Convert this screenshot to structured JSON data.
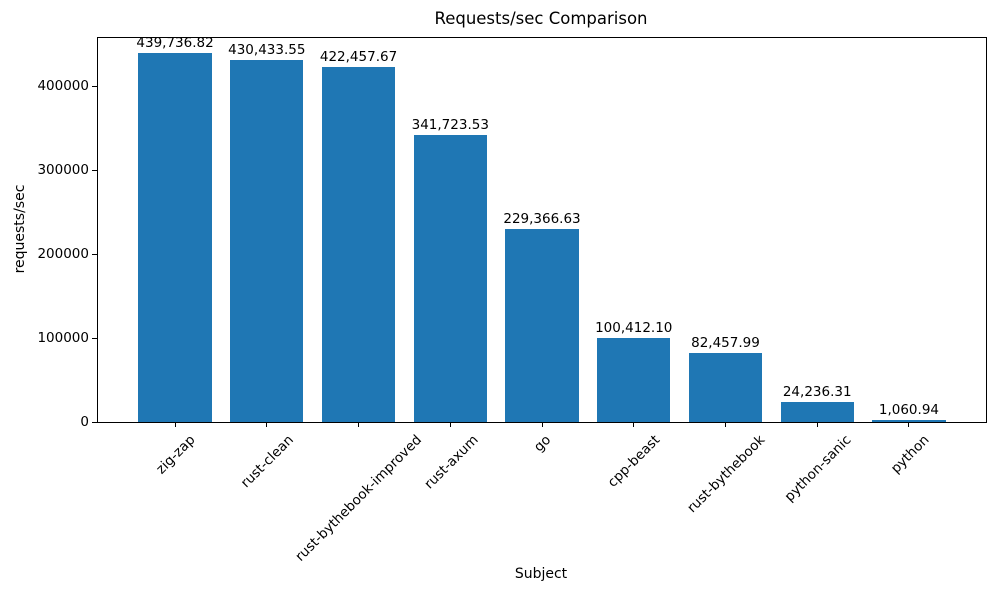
{
  "chart_data": {
    "type": "bar",
    "title": "Requests/sec Comparison",
    "xlabel": "Subject",
    "ylabel": "requests/sec",
    "categories": [
      "zig-zap",
      "rust-clean",
      "rust-bythebook-improved",
      "rust-axum",
      "go",
      "cpp-beast",
      "rust-bythebook",
      "python-sanic",
      "python"
    ],
    "values": [
      439736.82,
      430433.55,
      422457.67,
      341723.53,
      229366.63,
      100412.1,
      82457.99,
      24236.31,
      1060.94
    ],
    "value_labels": [
      "439,736.82",
      "430,433.55",
      "422,457.67",
      "341,723.53",
      "229,366.63",
      "100,412.10",
      "82,457.99",
      "24,236.31",
      "1,060.94"
    ],
    "yticks": [
      0,
      100000,
      200000,
      300000,
      400000
    ],
    "ylim": [
      0,
      457142
    ],
    "xtick_rotation": 45,
    "grid": false,
    "legend": "none",
    "bar_color": "#1f77b4",
    "axis_color": "#000000",
    "background_color": "#ffffff"
  }
}
